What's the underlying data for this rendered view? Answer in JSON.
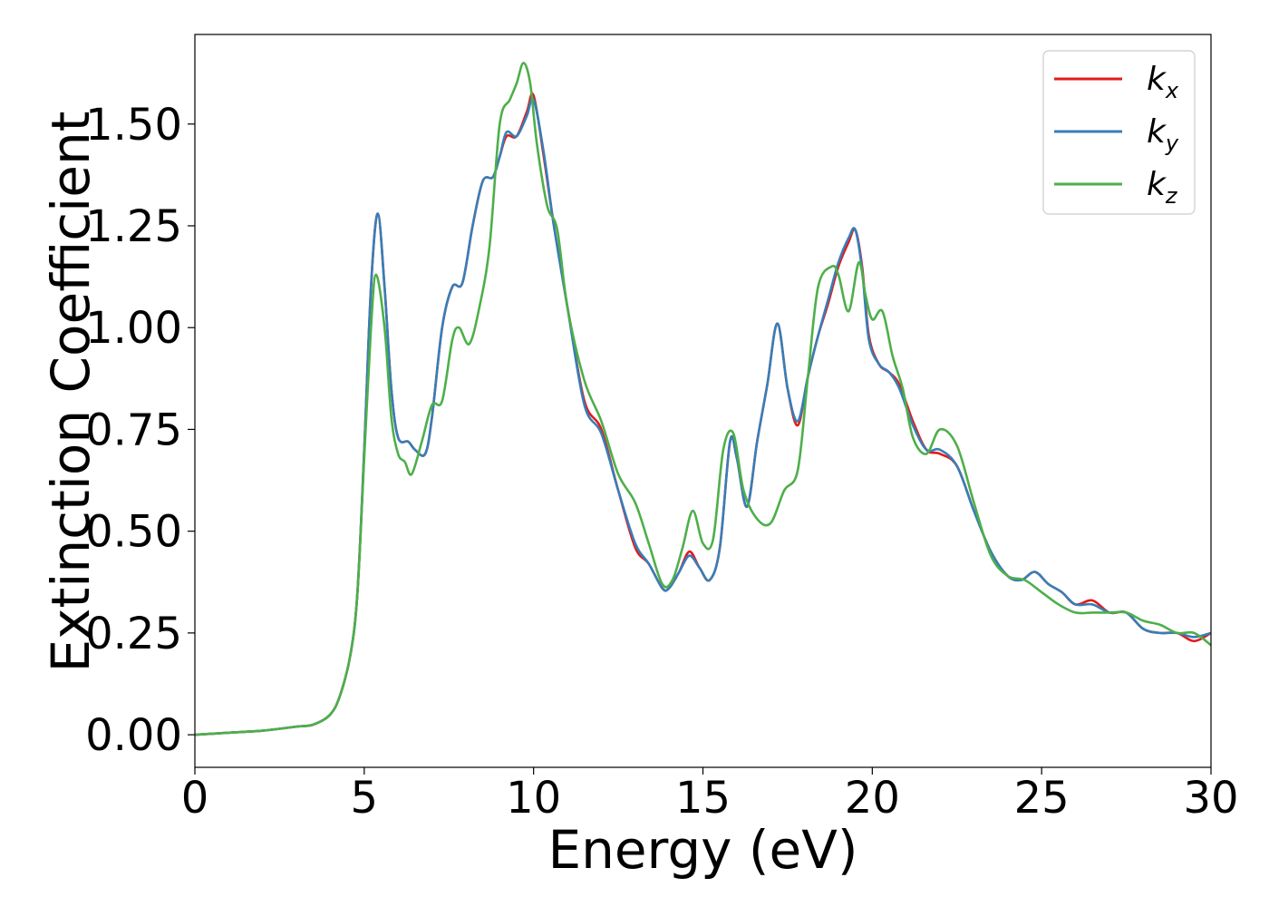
{
  "chart_data": {
    "type": "line",
    "xlabel": "Energy (eV)",
    "ylabel": "Extinction Coefficient",
    "xlim": [
      0,
      30
    ],
    "ylim": [
      -0.08,
      1.72
    ],
    "xticks": [
      0,
      5,
      10,
      15,
      20,
      25,
      30
    ],
    "xtick_labels": [
      "0",
      "5",
      "10",
      "15",
      "20",
      "25",
      "30"
    ],
    "yticks": [
      0.0,
      0.25,
      0.5,
      0.75,
      1.0,
      1.25,
      1.5
    ],
    "ytick_labels": [
      "0.00",
      "0.25",
      "0.50",
      "0.75",
      "1.00",
      "1.25",
      "1.50"
    ],
    "grid": false,
    "legend_position": "top-right",
    "series": [
      {
        "name": "kx",
        "label_main": "k",
        "label_sub": "x",
        "color": "#e41a1c",
        "x": [
          0,
          1,
          2,
          3,
          3.5,
          4,
          4.3,
          4.6,
          4.8,
          5.0,
          5.2,
          5.4,
          5.6,
          5.8,
          6.0,
          6.3,
          6.5,
          6.8,
          7.0,
          7.3,
          7.6,
          7.9,
          8.2,
          8.5,
          8.8,
          9.0,
          9.2,
          9.5,
          9.8,
          10.0,
          10.3,
          10.6,
          11.0,
          11.5,
          12.0,
          12.5,
          13.0,
          13.4,
          13.8,
          14.0,
          14.3,
          14.6,
          14.9,
          15.2,
          15.5,
          15.8,
          16.0,
          16.3,
          16.6,
          16.9,
          17.2,
          17.5,
          17.8,
          18.1,
          18.4,
          18.7,
          19.0,
          19.3,
          19.5,
          19.7,
          19.9,
          20.2,
          20.5,
          20.8,
          21.2,
          21.6,
          22.0,
          22.5,
          23.0,
          23.5,
          24.0,
          24.4,
          24.8,
          25.2,
          25.6,
          26.0,
          26.5,
          27.0,
          27.5,
          28.0,
          28.5,
          29.0,
          29.5,
          30.0
        ],
        "y": [
          0.0,
          0.005,
          0.01,
          0.02,
          0.025,
          0.05,
          0.1,
          0.2,
          0.35,
          0.7,
          1.1,
          1.28,
          1.1,
          0.85,
          0.73,
          0.72,
          0.7,
          0.69,
          0.78,
          1.0,
          1.1,
          1.11,
          1.25,
          1.36,
          1.37,
          1.42,
          1.47,
          1.47,
          1.53,
          1.57,
          1.42,
          1.25,
          1.05,
          0.82,
          0.75,
          0.6,
          0.46,
          0.42,
          0.36,
          0.36,
          0.4,
          0.45,
          0.41,
          0.38,
          0.46,
          0.72,
          0.68,
          0.56,
          0.72,
          0.86,
          1.01,
          0.85,
          0.76,
          0.88,
          0.98,
          1.06,
          1.15,
          1.21,
          1.24,
          1.15,
          0.98,
          0.91,
          0.89,
          0.86,
          0.77,
          0.7,
          0.69,
          0.66,
          0.55,
          0.45,
          0.39,
          0.38,
          0.4,
          0.37,
          0.35,
          0.32,
          0.33,
          0.3,
          0.3,
          0.26,
          0.25,
          0.25,
          0.23,
          0.25
        ]
      },
      {
        "name": "ky",
        "label_main": "k",
        "label_sub": "y",
        "color": "#377eb8",
        "x": [
          0,
          1,
          2,
          3,
          3.5,
          4,
          4.3,
          4.6,
          4.8,
          5.0,
          5.2,
          5.4,
          5.6,
          5.8,
          6.0,
          6.3,
          6.5,
          6.8,
          7.0,
          7.3,
          7.6,
          7.9,
          8.2,
          8.5,
          8.8,
          9.0,
          9.2,
          9.5,
          9.8,
          10.0,
          10.3,
          10.6,
          11.0,
          11.5,
          12.0,
          12.5,
          13.0,
          13.4,
          13.8,
          14.0,
          14.3,
          14.6,
          14.9,
          15.2,
          15.5,
          15.8,
          16.0,
          16.3,
          16.6,
          16.9,
          17.2,
          17.5,
          17.8,
          18.1,
          18.4,
          18.7,
          19.0,
          19.3,
          19.5,
          19.7,
          19.9,
          20.2,
          20.5,
          20.8,
          21.2,
          21.6,
          22.0,
          22.5,
          23.0,
          23.5,
          24.0,
          24.4,
          24.8,
          25.2,
          25.6,
          26.0,
          26.5,
          27.0,
          27.5,
          28.0,
          28.5,
          29.0,
          29.5,
          30.0
        ],
        "y": [
          0.0,
          0.005,
          0.01,
          0.02,
          0.025,
          0.05,
          0.1,
          0.2,
          0.35,
          0.7,
          1.1,
          1.28,
          1.1,
          0.85,
          0.73,
          0.72,
          0.7,
          0.69,
          0.78,
          1.0,
          1.1,
          1.11,
          1.25,
          1.36,
          1.37,
          1.42,
          1.48,
          1.47,
          1.52,
          1.56,
          1.43,
          1.25,
          1.05,
          0.81,
          0.74,
          0.6,
          0.47,
          0.42,
          0.36,
          0.36,
          0.4,
          0.44,
          0.41,
          0.38,
          0.46,
          0.72,
          0.68,
          0.56,
          0.72,
          0.86,
          1.01,
          0.85,
          0.77,
          0.88,
          0.98,
          1.07,
          1.16,
          1.22,
          1.24,
          1.14,
          0.97,
          0.91,
          0.89,
          0.85,
          0.76,
          0.7,
          0.7,
          0.66,
          0.55,
          0.45,
          0.39,
          0.38,
          0.4,
          0.37,
          0.35,
          0.32,
          0.32,
          0.3,
          0.3,
          0.26,
          0.25,
          0.25,
          0.24,
          0.25
        ]
      },
      {
        "name": "kz",
        "label_main": "k",
        "label_sub": "z",
        "color": "#4daf4a",
        "x": [
          0,
          1,
          2,
          3,
          3.5,
          4,
          4.3,
          4.6,
          4.8,
          5.0,
          5.2,
          5.35,
          5.6,
          5.8,
          6.0,
          6.2,
          6.4,
          6.7,
          7.0,
          7.3,
          7.6,
          7.8,
          8.1,
          8.4,
          8.7,
          9.0,
          9.3,
          9.5,
          9.7,
          9.9,
          10.1,
          10.4,
          10.7,
          11.0,
          11.5,
          12.0,
          12.5,
          13.0,
          13.4,
          13.8,
          14.1,
          14.4,
          14.7,
          15.0,
          15.3,
          15.6,
          15.9,
          16.2,
          16.6,
          17.0,
          17.4,
          17.8,
          18.1,
          18.4,
          18.8,
          19.0,
          19.3,
          19.6,
          19.8,
          20.0,
          20.3,
          20.6,
          20.9,
          21.2,
          21.6,
          22.0,
          22.5,
          23.0,
          23.5,
          24.0,
          24.5,
          25.0,
          25.5,
          26.0,
          26.5,
          27.0,
          27.5,
          28.0,
          28.5,
          29.0,
          29.5,
          30.0
        ],
        "y": [
          0.0,
          0.005,
          0.01,
          0.02,
          0.025,
          0.05,
          0.1,
          0.2,
          0.35,
          0.68,
          1.0,
          1.13,
          1.0,
          0.78,
          0.69,
          0.67,
          0.64,
          0.72,
          0.81,
          0.82,
          0.97,
          1.0,
          0.96,
          1.05,
          1.2,
          1.5,
          1.56,
          1.6,
          1.65,
          1.6,
          1.45,
          1.3,
          1.24,
          1.05,
          0.87,
          0.77,
          0.64,
          0.57,
          0.47,
          0.37,
          0.38,
          0.46,
          0.55,
          0.47,
          0.48,
          0.7,
          0.74,
          0.6,
          0.53,
          0.52,
          0.6,
          0.65,
          0.88,
          1.1,
          1.15,
          1.13,
          1.04,
          1.16,
          1.08,
          1.02,
          1.04,
          0.93,
          0.85,
          0.73,
          0.69,
          0.75,
          0.71,
          0.57,
          0.44,
          0.39,
          0.38,
          0.35,
          0.32,
          0.3,
          0.3,
          0.3,
          0.3,
          0.28,
          0.27,
          0.25,
          0.25,
          0.22
        ]
      }
    ]
  }
}
